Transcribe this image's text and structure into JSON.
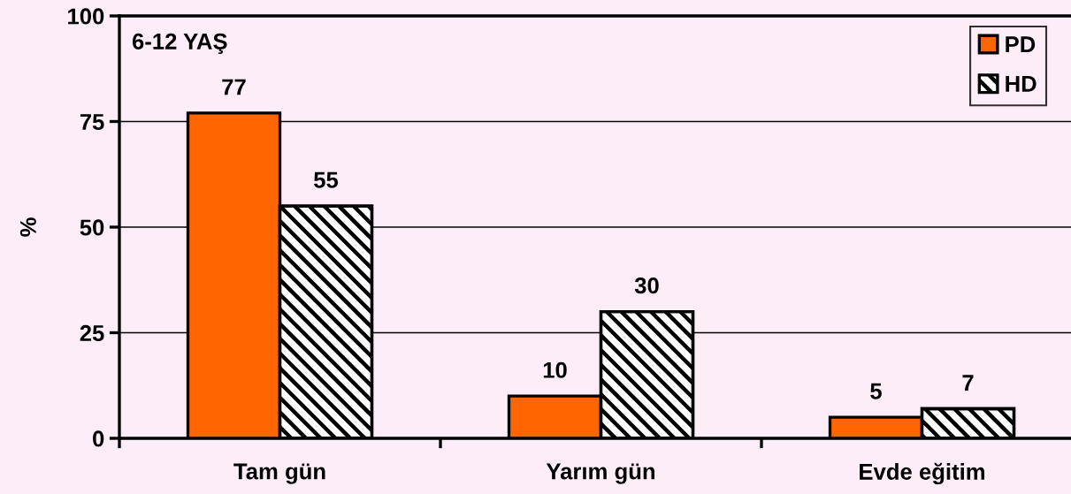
{
  "chart_data": {
    "type": "bar",
    "title": "6-12 YAŞ",
    "ylabel": "%",
    "categories": [
      "Tam gün",
      "Yarım gün",
      "Evde eğitim"
    ],
    "series": [
      {
        "name": "PD",
        "color": "#ff6600",
        "values": [
          77,
          10,
          5
        ]
      },
      {
        "name": "HD",
        "color": "#000000",
        "values": [
          55,
          30,
          7
        ]
      }
    ],
    "ylim": [
      0,
      100
    ],
    "yticks": [
      0,
      25,
      50,
      75,
      100
    ],
    "grid": "y",
    "legend": "top right",
    "data_labels": true
  }
}
